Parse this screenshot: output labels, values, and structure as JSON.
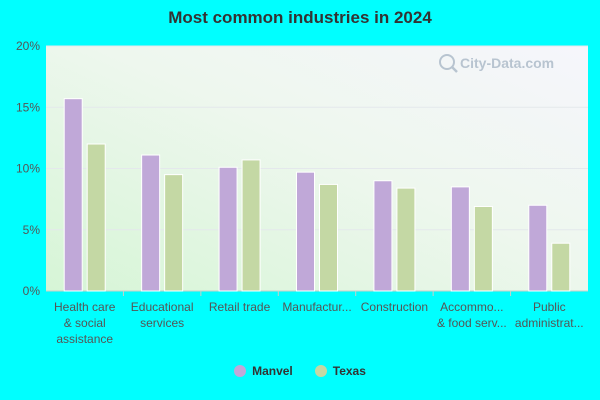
{
  "chart_data": {
    "type": "bar",
    "title": "Most common industries in 2024",
    "categories": [
      [
        "Health care",
        "& social",
        "assistance"
      ],
      [
        "Educational",
        "services"
      ],
      [
        "Retail trade"
      ],
      [
        "Manufactur..."
      ],
      [
        "Construction"
      ],
      [
        "Accommo...",
        "& food serv..."
      ],
      [
        "Public",
        "administrat..."
      ]
    ],
    "series": [
      {
        "name": "Manvel",
        "color": "#c0a8d8",
        "values": [
          15.7,
          11.1,
          10.1,
          9.7,
          9.0,
          8.5,
          7.0
        ]
      },
      {
        "name": "Texas",
        "color": "#c4d8a4",
        "values": [
          12.0,
          9.5,
          10.7,
          8.7,
          8.4,
          6.9,
          3.9
        ]
      }
    ],
    "ylim": [
      0,
      20
    ],
    "yticks": [
      {
        "value": 0,
        "label": "0%"
      },
      {
        "value": 5,
        "label": "5%"
      },
      {
        "value": 10,
        "label": "10%"
      },
      {
        "value": 15,
        "label": "15%"
      },
      {
        "value": 20,
        "label": "20%"
      }
    ],
    "watermark": "City-Data.com",
    "legend_position": "bottom"
  }
}
